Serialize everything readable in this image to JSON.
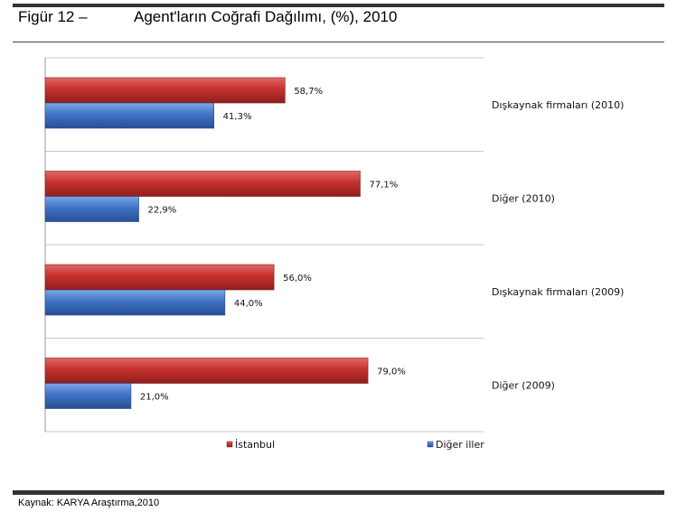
{
  "figure": {
    "label": "Figür  12 –",
    "title": "Agent'ların Coğrafi Dağılımı, (%), 2010"
  },
  "source": "Kaynak: KARYA Araştırma,2010",
  "colors": {
    "red": "#c0302f",
    "blue": "#3d72c4",
    "gridline": "#c8c8c8",
    "axis": "#9a9a9a"
  },
  "chart_data": {
    "type": "bar",
    "orientation": "horizontal",
    "title": "Agent'ların Coğrafi Dağılımı, (%), 2010",
    "categories": [
      "Dışkaynak firmaları (2010)",
      "Diğer (2010)",
      "Dışkaynak firmaları (2009)",
      "Diğer (2009)"
    ],
    "series": [
      {
        "name": "İstanbul",
        "color": "#c0302f",
        "values": [
          58.7,
          77.1,
          56.0,
          79.0
        ],
        "labels": [
          "58,7%",
          "77,1%",
          "56,0%",
          "79,0%"
        ]
      },
      {
        "name": "Diğer iller",
        "color": "#3d72c4",
        "values": [
          41.3,
          22.9,
          44.0,
          21.0
        ],
        "labels": [
          "41,3%",
          "22,9%",
          "44,0%",
          "21,0%"
        ]
      }
    ],
    "xlim": [
      0,
      100
    ],
    "legend": "bottom-right"
  }
}
